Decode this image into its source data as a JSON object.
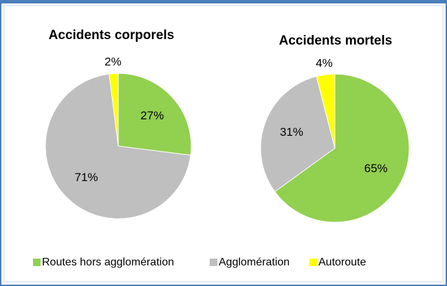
{
  "chart_data": [
    {
      "type": "pie",
      "title": "Accidents corporels",
      "categories": [
        "Routes hors agglomération",
        "Agglomération",
        "Autoroute"
      ],
      "values": [
        27,
        71,
        2
      ],
      "value_labels": [
        "27%",
        "71%",
        "2%"
      ],
      "colors": [
        "#92d050",
        "#bfbfbf",
        "#ffff00"
      ]
    },
    {
      "type": "pie",
      "title": "Accidents mortels",
      "categories": [
        "Routes hors agglomération",
        "Agglomération",
        "Autoroute"
      ],
      "values": [
        65,
        31,
        4
      ],
      "value_labels": [
        "65%",
        "31%",
        "4%"
      ],
      "colors": [
        "#92d050",
        "#bfbfbf",
        "#ffff00"
      ]
    }
  ]
}
